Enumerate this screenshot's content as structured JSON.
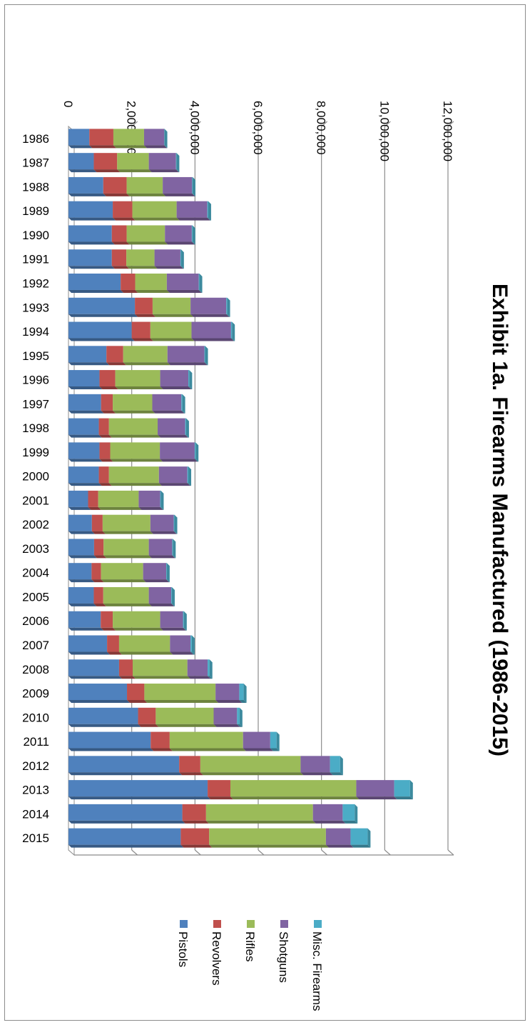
{
  "chart_data": {
    "type": "bar",
    "orientation": "rotated-90-clockwise",
    "stacked": true,
    "title": "Exhibit 1a. Firearms Manufactured (1986-2015)",
    "categories": [
      "1986",
      "1987",
      "1988",
      "1989",
      "1990",
      "1991",
      "1992",
      "1993",
      "1994",
      "1995",
      "1996",
      "1997",
      "1998",
      "1999",
      "2000",
      "2001",
      "2002",
      "2003",
      "2004",
      "2005",
      "2006",
      "2007",
      "2008",
      "2009",
      "2010",
      "2011",
      "2012",
      "2013",
      "2014",
      "2015"
    ],
    "value_ticks": [
      "0",
      "2,000,000",
      "4,000,000",
      "6,000,000",
      "8,000,000",
      "10,000,000",
      "12,000,000"
    ],
    "ylim": [
      0,
      12000000
    ],
    "grid": true,
    "legend_position": "bottom",
    "series": [
      {
        "name": "Pistols",
        "color": "#4f81bd",
        "values": [
          660000,
          800000,
          1100000,
          1400000,
          1370000,
          1370000,
          1650000,
          2100000,
          2000000,
          1200000,
          980000,
          1030000,
          960000,
          980000,
          960000,
          620000,
          740000,
          810000,
          730000,
          800000,
          1020000,
          1220000,
          1600000,
          1850000,
          2200000,
          2600000,
          3500000,
          4400000,
          3600000,
          3550000
        ]
      },
      {
        "name": "Revolvers",
        "color": "#c0504d",
        "values": [
          760000,
          740000,
          740000,
          620000,
          470000,
          460000,
          460000,
          560000,
          590000,
          530000,
          500000,
          370000,
          320000,
          340000,
          320000,
          320000,
          340000,
          300000,
          300000,
          300000,
          380000,
          380000,
          430000,
          550000,
          560000,
          600000,
          670000,
          720000,
          750000,
          900000
        ]
      },
      {
        "name": "Rifles",
        "color": "#9bbb59",
        "values": [
          970000,
          1000000,
          1140000,
          1400000,
          1210000,
          890000,
          1000000,
          1200000,
          1300000,
          1400000,
          1420000,
          1250000,
          1540000,
          1570000,
          1580000,
          1280000,
          1510000,
          1430000,
          1330000,
          1440000,
          1500000,
          1610000,
          1730000,
          2250000,
          1830000,
          2320000,
          3170000,
          3980000,
          3380000,
          3690000
        ]
      },
      {
        "name": "Shotguns",
        "color": "#8064a2",
        "values": [
          640000,
          860000,
          930000,
          970000,
          850000,
          820000,
          1010000,
          1130000,
          1250000,
          1170000,
          890000,
          920000,
          870000,
          1100000,
          900000,
          680000,
          740000,
          740000,
          730000,
          710000,
          720000,
          650000,
          640000,
          750000,
          740000,
          860000,
          930000,
          1200000,
          940000,
          780000
        ]
      },
      {
        "name": "Misc. Firearms",
        "color": "#4bacc6",
        "values": [
          5000,
          15000,
          15000,
          30000,
          20000,
          20000,
          20000,
          30000,
          30000,
          20000,
          30000,
          30000,
          30000,
          30000,
          30000,
          20000,
          20000,
          20000,
          20000,
          20000,
          30000,
          40000,
          60000,
          140000,
          80000,
          200000,
          320000,
          500000,
          380000,
          540000
        ]
      }
    ]
  }
}
